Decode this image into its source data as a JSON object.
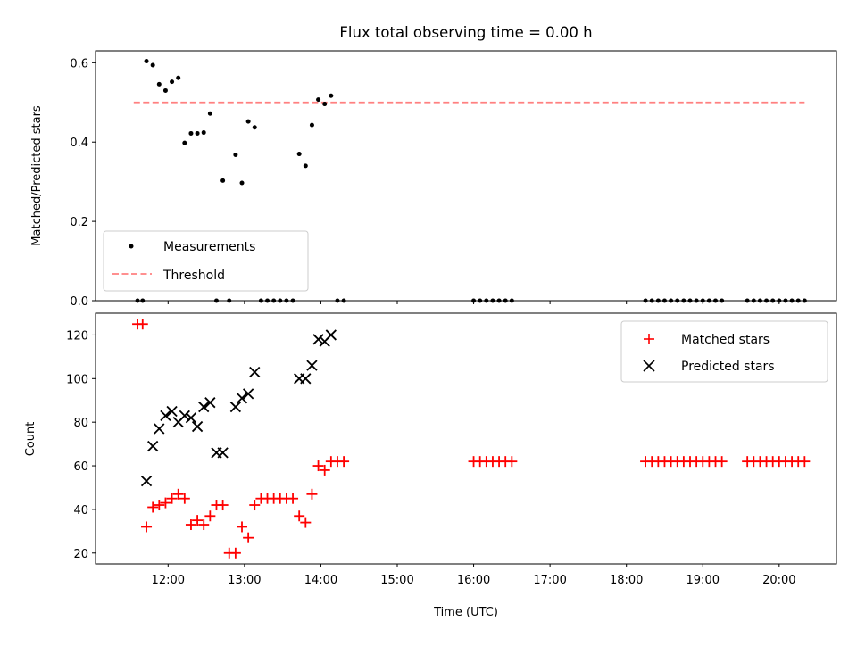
{
  "title": "Flux total observing time = 0.00 h",
  "colors": {
    "measurement": "#000000",
    "threshold": "#ff8080",
    "matched": "#ff0000",
    "predicted": "#000000"
  },
  "chart_data": [
    {
      "type": "scatter",
      "ylabel": "Matched/Predicted stars",
      "ylim": [
        0,
        0.63
      ],
      "yticks": [
        0.0,
        0.2,
        0.4,
        0.6
      ],
      "ytick_labels": [
        "0.0",
        "0.2",
        "0.4",
        "0.6"
      ],
      "xlim": [
        "11:03",
        "20:45"
      ],
      "legend": {
        "placement": "lower-left",
        "entries": [
          "Measurements",
          "Threshold"
        ]
      },
      "series": [
        {
          "name": "Measurements",
          "marker": "dot",
          "x": [
            "11:36",
            "11:40",
            "11:43",
            "11:48",
            "11:53",
            "11:58",
            "12:03",
            "12:08",
            "12:13",
            "12:18",
            "12:23",
            "12:28",
            "12:33",
            "12:38",
            "12:43",
            "12:48",
            "12:53",
            "12:58",
            "13:03",
            "13:08",
            "13:13",
            "13:18",
            "13:23",
            "13:28",
            "13:33",
            "13:38",
            "13:43",
            "13:48",
            "13:53",
            "13:58",
            "14:03",
            "14:08",
            "14:13",
            "14:18",
            "16:00",
            "16:05",
            "16:10",
            "16:15",
            "16:20",
            "16:25",
            "16:30",
            "18:15",
            "18:20",
            "18:25",
            "18:30",
            "18:35",
            "18:40",
            "18:45",
            "18:50",
            "18:55",
            "19:00",
            "19:05",
            "19:10",
            "19:15",
            "19:35",
            "19:40",
            "19:45",
            "19:50",
            "19:55",
            "20:00",
            "20:05",
            "20:10",
            "20:15",
            "20:20"
          ],
          "y": [
            0,
            0,
            0.604,
            0.594,
            0.546,
            0.53,
            0.552,
            0.562,
            0.398,
            0.422,
            0.422,
            0.424,
            0.472,
            0,
            0.303,
            0,
            0.368,
            0.297,
            0.452,
            0.437,
            0,
            0,
            0,
            0,
            0,
            0,
            0.37,
            0.34,
            0.443,
            0.507,
            0.496,
            0.517,
            0,
            0,
            0,
            0,
            0,
            0,
            0,
            0,
            0,
            0,
            0,
            0,
            0,
            0,
            0,
            0,
            0,
            0,
            0,
            0,
            0,
            0,
            0,
            0,
            0,
            0,
            0,
            0,
            0,
            0,
            0,
            0
          ]
        },
        {
          "name": "Threshold",
          "style": "dashed",
          "x": [
            "11:33",
            "20:20"
          ],
          "y": [
            0.5,
            0.5
          ]
        }
      ]
    },
    {
      "type": "scatter",
      "xlabel": "Time (UTC)",
      "ylabel": "Count",
      "ylim": [
        15,
        130
      ],
      "yticks": [
        20,
        40,
        60,
        80,
        100,
        120
      ],
      "ytick_labels": [
        "20",
        "40",
        "60",
        "80",
        "100",
        "120"
      ],
      "xlim": [
        "11:03",
        "20:45"
      ],
      "xticks": [
        "12:00",
        "13:00",
        "14:00",
        "15:00",
        "16:00",
        "17:00",
        "18:00",
        "19:00",
        "20:00"
      ],
      "xtick_labels": [
        "12:00",
        "13:00",
        "14:00",
        "15:00",
        "16:00",
        "17:00",
        "18:00",
        "19:00",
        "20:00"
      ],
      "legend": {
        "placement": "upper-right",
        "entries": [
          "Matched stars",
          "Predicted stars"
        ]
      },
      "series": [
        {
          "name": "Matched stars",
          "marker": "plus",
          "x": [
            "11:36",
            "11:40",
            "11:43",
            "11:48",
            "11:53",
            "11:58",
            "12:03",
            "12:08",
            "12:13",
            "12:18",
            "12:23",
            "12:28",
            "12:33",
            "12:38",
            "12:43",
            "12:48",
            "12:53",
            "12:58",
            "13:03",
            "13:08",
            "13:13",
            "13:18",
            "13:23",
            "13:28",
            "13:33",
            "13:38",
            "13:43",
            "13:48",
            "13:53",
            "13:58",
            "14:03",
            "14:08",
            "14:13",
            "14:18",
            "16:00",
            "16:05",
            "16:10",
            "16:15",
            "16:20",
            "16:25",
            "16:30",
            "18:15",
            "18:20",
            "18:25",
            "18:30",
            "18:35",
            "18:40",
            "18:45",
            "18:50",
            "18:55",
            "19:00",
            "19:05",
            "19:10",
            "19:15",
            "19:35",
            "19:40",
            "19:45",
            "19:50",
            "19:55",
            "20:00",
            "20:05",
            "20:10",
            "20:15",
            "20:20"
          ],
          "y": [
            125,
            125,
            32,
            41,
            42,
            43,
            45,
            47,
            45,
            33,
            35,
            33,
            37,
            42,
            42,
            20,
            20,
            32,
            27,
            42,
            45,
            45,
            45,
            45,
            45,
            45,
            37,
            34,
            47,
            60,
            58,
            62,
            62,
            62,
            62,
            62,
            62,
            62,
            62,
            62,
            62,
            62,
            62,
            62,
            62,
            62,
            62,
            62,
            62,
            62,
            62,
            62,
            62,
            62,
            62,
            62,
            62,
            62,
            62,
            62,
            62,
            62,
            62,
            62
          ]
        },
        {
          "name": "Predicted stars",
          "marker": "x",
          "x": [
            "11:43",
            "11:48",
            "11:53",
            "11:58",
            "12:03",
            "12:08",
            "12:13",
            "12:18",
            "12:23",
            "12:28",
            "12:33",
            "12:38",
            "12:43",
            "12:53",
            "12:58",
            "13:03",
            "13:08",
            "13:43",
            "13:48",
            "13:53",
            "13:58",
            "14:03",
            "14:08"
          ],
          "y": [
            53,
            69,
            77,
            83,
            85,
            80,
            83,
            82,
            78,
            87,
            89,
            66,
            66,
            87,
            91,
            93,
            103,
            100,
            100,
            106,
            118,
            117,
            120
          ]
        }
      ]
    }
  ]
}
